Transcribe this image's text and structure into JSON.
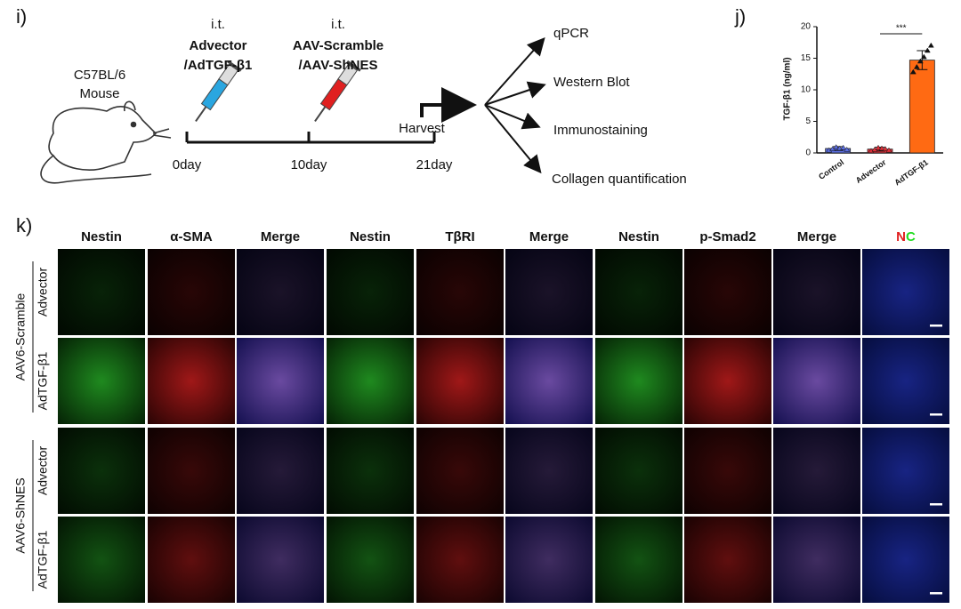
{
  "panel_i": {
    "label": "i)",
    "subject": [
      "C57BL/6",
      "Mouse"
    ],
    "steps": [
      {
        "route": "i.t.",
        "agents": [
          "Advector",
          "/AdTGF-β1"
        ]
      },
      {
        "route": "i.t.",
        "agents": [
          "AAV-Scramble",
          "/AAV-ShNES"
        ]
      }
    ],
    "timeline": [
      "0day",
      "10day",
      "21day"
    ],
    "harvest": "Harvest",
    "analyses": [
      "qPCR",
      "Western Blot",
      "Immunostaining",
      "Collagen quantification"
    ]
  },
  "chart_data": {
    "type": "bar",
    "panel_label": "j)",
    "y_label": "TGF-β1 (ng/ml)",
    "categories": [
      "Control",
      "Advector",
      "AdTGF-β1"
    ],
    "values": [
      0.7,
      0.6,
      14.7
    ],
    "errors": [
      0.3,
      0.3,
      1.5
    ],
    "points": [
      [
        0.4,
        0.6,
        0.9,
        0.7,
        0.8,
        0.5
      ],
      [
        0.3,
        0.5,
        0.8,
        0.7,
        0.6,
        0.4
      ],
      [
        12.8,
        13.6,
        14.5,
        15.2,
        16.2,
        17.0
      ]
    ],
    "colors": [
      "#5b6ee0",
      "#e0303a",
      "#ff6a13"
    ],
    "ylim": [
      0,
      20
    ],
    "yticks": [
      0,
      5,
      10,
      15,
      20
    ],
    "significance": "***"
  },
  "panel_k": {
    "label": "k)",
    "columns": [
      {
        "text": "Nestin",
        "color": "#22dd22"
      },
      {
        "text": "α-SMA",
        "color": "#e02020"
      },
      {
        "text": "Merge",
        "color": "#111111"
      },
      {
        "text": "Nestin",
        "color": "#22dd22"
      },
      {
        "text": "TβRI",
        "color": "#e02020"
      },
      {
        "text": "Merge",
        "color": "#111111"
      },
      {
        "text": "Nestin",
        "color": "#22dd22"
      },
      {
        "text": "p-Smad2",
        "color": "#e02020"
      },
      {
        "text": "Merge",
        "color": "#111111"
      }
    ],
    "nc_label": [
      {
        "text": "N",
        "color": "#e02020"
      },
      {
        "text": "C",
        "color": "#22dd22"
      }
    ],
    "groups": [
      {
        "name": "AAV6-Scramble",
        "rows": [
          "Advector",
          "AdTGF-β1"
        ]
      },
      {
        "name": "AAV6-ShNES",
        "rows": [
          "Advector",
          "AdTGF-β1"
        ]
      }
    ]
  }
}
